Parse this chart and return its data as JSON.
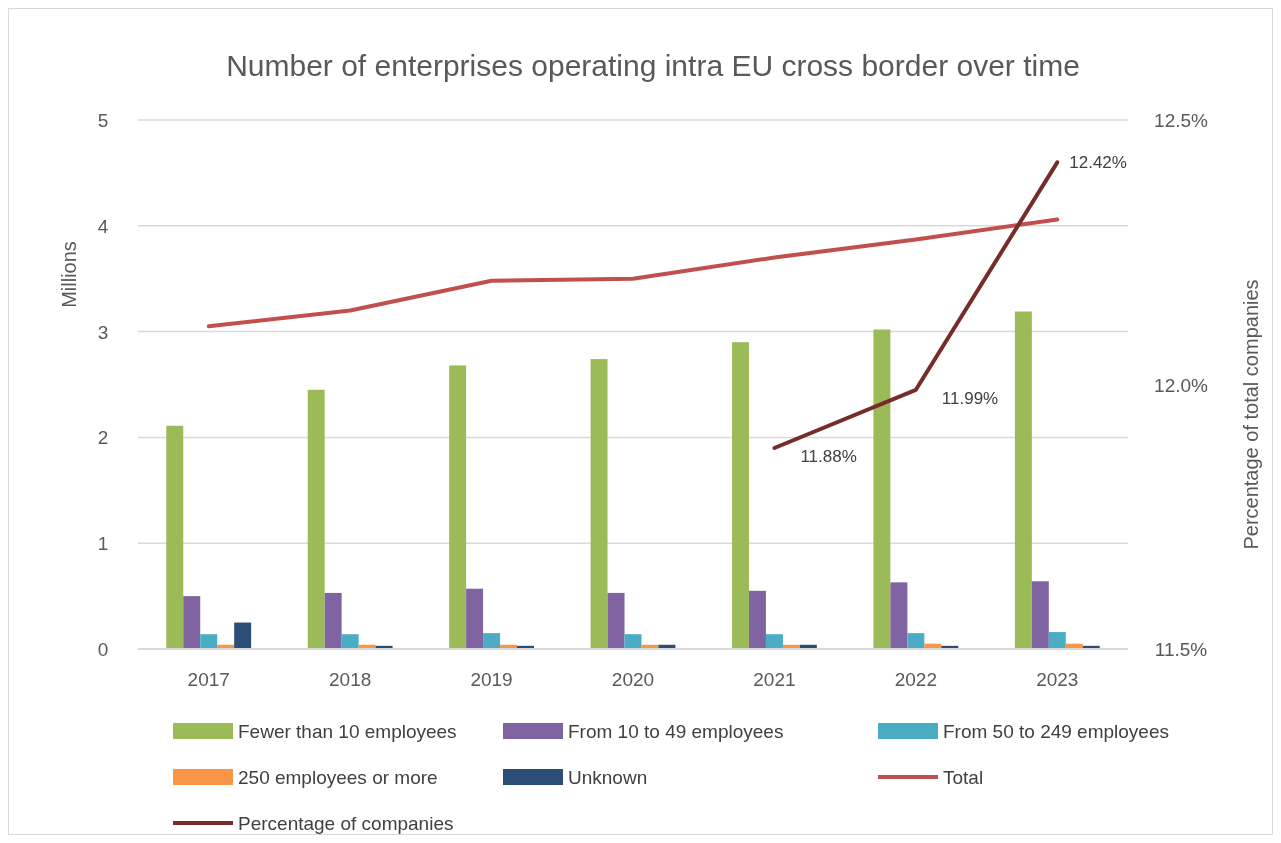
{
  "chart_data": {
    "type": "bar",
    "title": "Number of enterprises operating intra EU cross border over time",
    "ylabel": "Millions",
    "y2label": "Percentage of total companies",
    "categories": [
      "2017",
      "2018",
      "2019",
      "2020",
      "2021",
      "2022",
      "2023"
    ],
    "series": [
      {
        "name": "Fewer than 10 employees",
        "color": "#9bbb59",
        "values": [
          2.11,
          2.45,
          2.68,
          2.74,
          2.9,
          3.02,
          3.19
        ]
      },
      {
        "name": "From 10 to 49 employees",
        "color": "#8064a2",
        "values": [
          0.5,
          0.53,
          0.57,
          0.53,
          0.55,
          0.63,
          0.64
        ]
      },
      {
        "name": "From 50 to 249 employees",
        "color": "#4bacc6",
        "values": [
          0.14,
          0.14,
          0.15,
          0.14,
          0.14,
          0.15,
          0.16
        ]
      },
      {
        "name": "250 employees or more",
        "color": "#f79646",
        "values": [
          0.04,
          0.04,
          0.04,
          0.04,
          0.04,
          0.05,
          0.05
        ]
      },
      {
        "name": "Unknown",
        "color": "#2c4d75",
        "values": [
          0.25,
          0.03,
          0.03,
          0.04,
          0.04,
          0.03,
          0.03
        ]
      },
      {
        "name": "Total",
        "type": "line",
        "color": "#c0504d",
        "values": [
          3.05,
          3.2,
          3.48,
          3.5,
          3.7,
          3.87,
          4.06
        ]
      },
      {
        "name": "Percentage of companies",
        "type": "line",
        "axis": "y2",
        "color": "#772c2a",
        "values": [
          null,
          null,
          null,
          null,
          11.88,
          11.99,
          12.42
        ],
        "value_labels": [
          null,
          null,
          null,
          null,
          "11.88%",
          "11.99%",
          "12.42%"
        ]
      }
    ],
    "ylim": [
      0,
      5
    ],
    "yticks": [
      0,
      1,
      2,
      3,
      4,
      5
    ],
    "y2lim": [
      11.5,
      12.5
    ],
    "y2ticks": [
      {
        "value": 11.5,
        "label": "11.5%"
      },
      {
        "value": 12,
        "label": "12.0%"
      },
      {
        "value": 12.5,
        "label": "12.5%"
      }
    ],
    "grid": "y",
    "legend": "bottom"
  }
}
